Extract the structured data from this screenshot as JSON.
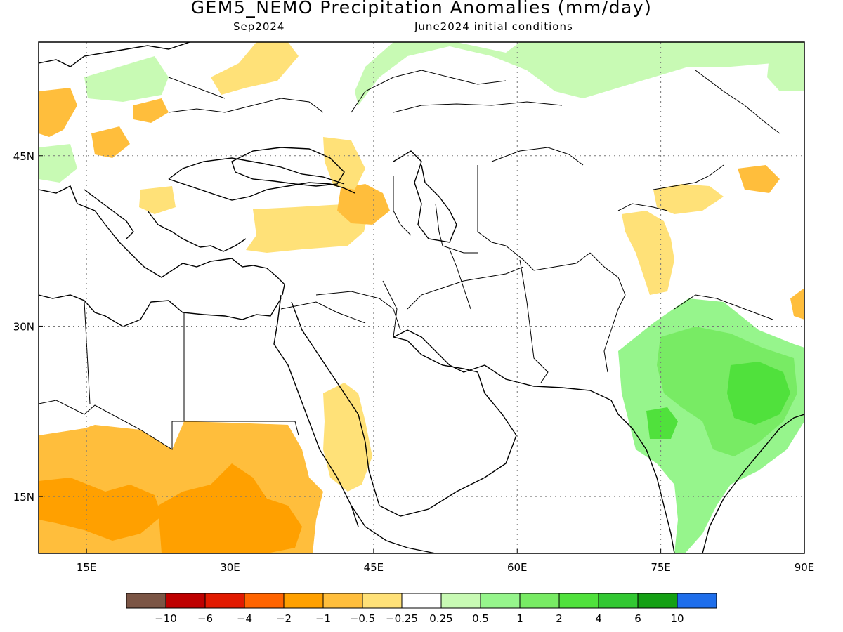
{
  "title": "GEM5_NEMO Precipitation Anomalies (mm/day)",
  "subtitle_left": "Sep2024",
  "subtitle_right": "June2024 initial conditions",
  "map": {
    "lon_range": [
      10,
      90
    ],
    "lat_range": [
      10,
      55
    ],
    "lon_ticks": [
      {
        "value": 15,
        "label": "15E"
      },
      {
        "value": 30,
        "label": "30E"
      },
      {
        "value": 45,
        "label": "45E"
      },
      {
        "value": 60,
        "label": "60E"
      },
      {
        "value": 75,
        "label": "75E"
      },
      {
        "value": 90,
        "label": "90E"
      }
    ],
    "lat_ticks": [
      {
        "value": 15,
        "label": "15N"
      },
      {
        "value": 30,
        "label": "30N"
      },
      {
        "value": 45,
        "label": "45N"
      }
    ],
    "grid": true,
    "grid_style": "dotted"
  },
  "colorbar": {
    "colors": [
      "#7b5545",
      "#be0000",
      "#e21a00",
      "#ff6400",
      "#ffa000",
      "#ffbe3c",
      "#ffe178",
      "#ffffff",
      "#c8fab4",
      "#96f58c",
      "#78eb64",
      "#50e13c",
      "#32c832",
      "#14a014",
      "#1e6eeb"
    ],
    "labels": [
      "−10",
      "−6",
      "−4",
      "−2",
      "−1",
      "−0.5",
      "−0.25",
      "0.25",
      "0.5",
      "1",
      "2",
      "4",
      "6",
      "10"
    ]
  },
  "anomaly_regions": [
    {
      "name": "central-africa-sahel",
      "level": "-1",
      "color": "#ffbe3c"
    },
    {
      "name": "sudan-ethiopia",
      "level": "-1",
      "color": "#ffbe3c"
    },
    {
      "name": "chad-core",
      "level": "-2",
      "color": "#ffa000"
    },
    {
      "name": "sudan-core",
      "level": "-2",
      "color": "#ffa000"
    },
    {
      "name": "anatolia",
      "level": "-0.5",
      "color": "#ffe178"
    },
    {
      "name": "caucasus",
      "level": "-1",
      "color": "#ffbe3c"
    },
    {
      "name": "arabian-west",
      "level": "-0.5",
      "color": "#ffe178"
    },
    {
      "name": "pakistan-kashmir",
      "level": "-0.5",
      "color": "#ffe178"
    },
    {
      "name": "western-china",
      "level": "-0.5",
      "color": "#ffe178"
    },
    {
      "name": "india-north",
      "level": "1",
      "color": "#96f58c"
    },
    {
      "name": "india-east",
      "level": "2",
      "color": "#78eb64"
    },
    {
      "name": "bengal-core",
      "level": "4",
      "color": "#50e13c"
    },
    {
      "name": "siberia-north",
      "level": "0.5",
      "color": "#c8fab4"
    },
    {
      "name": "europe-east-dry",
      "level": "-0.5",
      "color": "#ffe178"
    }
  ]
}
